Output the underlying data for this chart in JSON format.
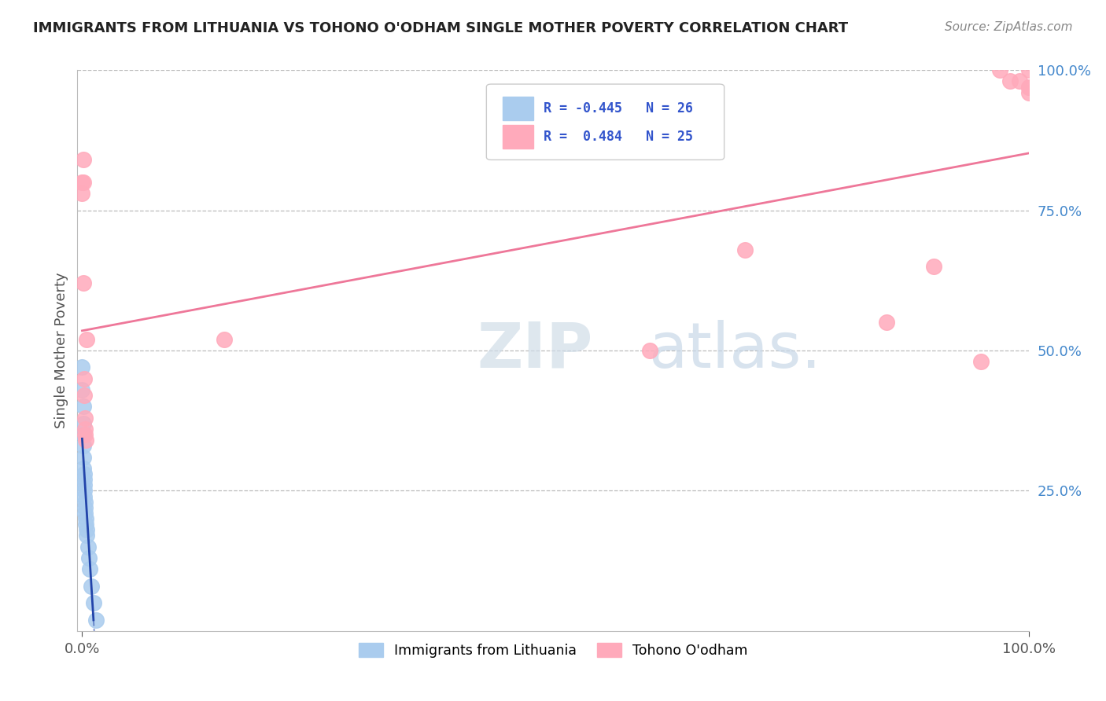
{
  "title": "IMMIGRANTS FROM LITHUANIA VS TOHONO O'ODHAM SINGLE MOTHER POVERTY CORRELATION CHART",
  "source": "Source: ZipAtlas.com",
  "ylabel": "Single Mother Poverty",
  "legend_label1": "Immigrants from Lithuania",
  "legend_label2": "Tohono O'odham",
  "r1": -0.445,
  "n1": 26,
  "r2": 0.484,
  "n2": 25,
  "blue_color": "#aaccee",
  "pink_color": "#ffaabb",
  "blue_line_color": "#2244aa",
  "pink_line_color": "#ee7799",
  "watermark_color": "#ccddf0",
  "blue_x": [
    0.0,
    0.0,
    0.001,
    0.001,
    0.001,
    0.001,
    0.001,
    0.001,
    0.002,
    0.002,
    0.002,
    0.002,
    0.002,
    0.003,
    0.003,
    0.003,
    0.004,
    0.004,
    0.005,
    0.005,
    0.006,
    0.007,
    0.008,
    0.01,
    0.012,
    0.015
  ],
  "blue_y": [
    0.47,
    0.43,
    0.4,
    0.37,
    0.35,
    0.33,
    0.31,
    0.29,
    0.28,
    0.27,
    0.26,
    0.25,
    0.24,
    0.23,
    0.22,
    0.21,
    0.2,
    0.19,
    0.18,
    0.17,
    0.15,
    0.13,
    0.11,
    0.08,
    0.05,
    0.02
  ],
  "pink_x": [
    0.0,
    0.0,
    0.001,
    0.001,
    0.001,
    0.002,
    0.002,
    0.003,
    0.003,
    0.003,
    0.004,
    0.005,
    0.15,
    0.6,
    0.7,
    0.85,
    0.9,
    0.95,
    0.97,
    0.98,
    0.99,
    1.0,
    1.0,
    1.0,
    1.0
  ],
  "pink_y": [
    0.8,
    0.78,
    0.84,
    0.8,
    0.62,
    0.45,
    0.42,
    0.38,
    0.36,
    0.35,
    0.34,
    0.52,
    0.52,
    0.5,
    0.68,
    0.55,
    0.65,
    0.48,
    1.0,
    0.98,
    0.98,
    0.97,
    0.97,
    0.96,
    1.0
  ]
}
